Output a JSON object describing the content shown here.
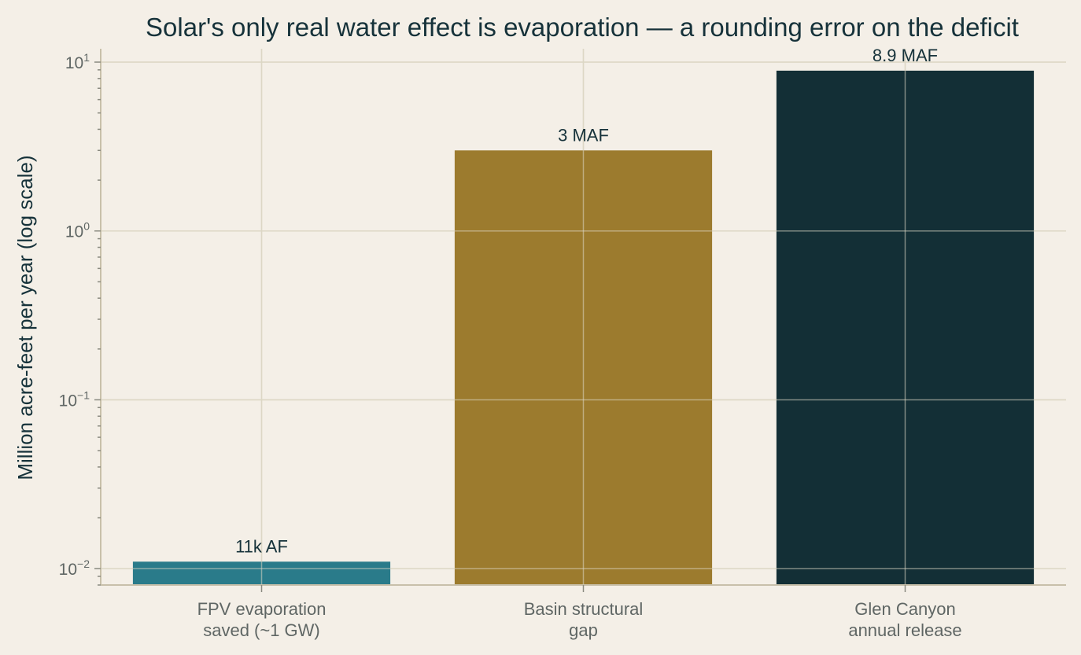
{
  "chart_data": {
    "type": "bar",
    "title": "Solar's only real water effect is evaporation — a rounding error on the deficit",
    "xlabel": "",
    "ylabel": "Million acre-feet per year (log scale)",
    "yscale": "log",
    "ylim": [
      0.008,
      12
    ],
    "yticks": [
      {
        "base": "10",
        "exp": "−2",
        "value": 0.01
      },
      {
        "base": "10",
        "exp": "−1",
        "value": 0.1
      },
      {
        "base": "10",
        "exp": "0",
        "value": 1
      },
      {
        "base": "10",
        "exp": "1",
        "value": 10
      }
    ],
    "grid": true,
    "categories": [
      [
        "FPV evaporation",
        "saved (~1 GW)"
      ],
      [
        "Basin structural",
        "gap"
      ],
      [
        "Glen Canyon",
        "annual release"
      ]
    ],
    "values": [
      0.011,
      3.0,
      8.9
    ],
    "data_labels": [
      "11k AF",
      "3 MAF",
      "8.9 MAF"
    ],
    "colors": [
      "#2a7b8a",
      "#9c7b2e",
      "#132f36"
    ]
  }
}
